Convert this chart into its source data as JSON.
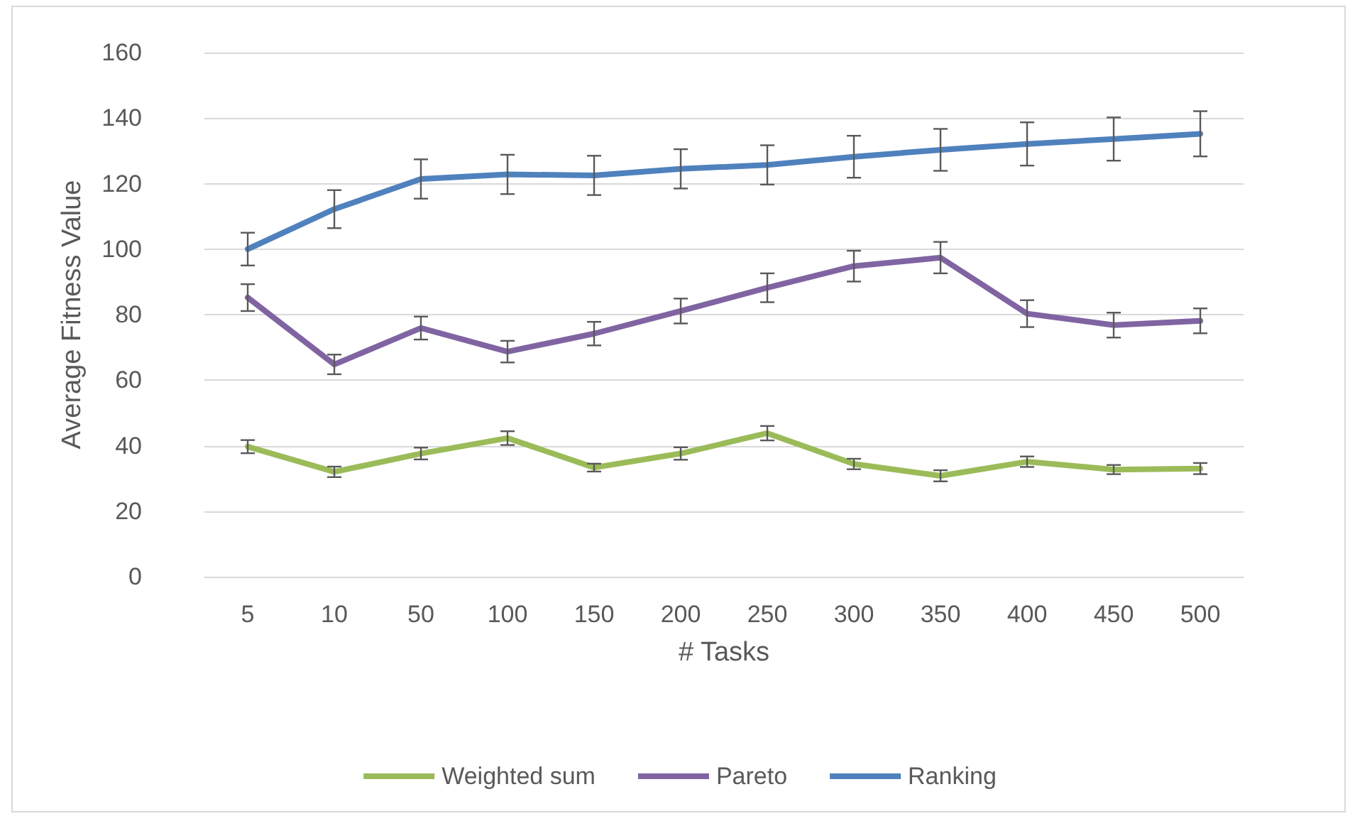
{
  "chart_data": {
    "type": "line",
    "xlabel": "# Tasks",
    "ylabel": "Average Fitness Value",
    "categories": [
      "5",
      "10",
      "50",
      "100",
      "150",
      "200",
      "250",
      "300",
      "350",
      "400",
      "450",
      "500"
    ],
    "series": [
      {
        "name": "Weighted sum",
        "color": "#9bbb59",
        "values": [
          39.7,
          32,
          37.6,
          42.3,
          33.3,
          37.6,
          43.8,
          34.4,
          30.8,
          35.1,
          32.7,
          33
        ],
        "errors": [
          2,
          1.6,
          1.8,
          2.1,
          1.2,
          1.9,
          2.2,
          1.6,
          1.7,
          1.6,
          1.4,
          1.7
        ]
      },
      {
        "name": "Pareto",
        "color": "#8064a2",
        "values": [
          85.2,
          64.8,
          75.9,
          68.7,
          74.2,
          81.1,
          88.2,
          94.8,
          97.4,
          80.3,
          76.8,
          78.1
        ],
        "errors": [
          4.1,
          3,
          3.5,
          3.3,
          3.6,
          3.8,
          4.4,
          4.7,
          4.8,
          4.1,
          3.8,
          3.8
        ]
      },
      {
        "name": "Ranking",
        "color": "#4f81bd",
        "values": [
          100,
          112.2,
          121.4,
          122.8,
          122.5,
          124.5,
          125.7,
          128.2,
          130.3,
          132.1,
          133.6,
          135.2
        ],
        "errors": [
          5,
          5.8,
          6,
          6,
          6,
          6,
          6,
          6.4,
          6.4,
          6.6,
          6.6,
          6.9
        ]
      }
    ],
    "ylim": [
      0,
      160
    ],
    "yticks": [
      0,
      20,
      40,
      60,
      80,
      100,
      120,
      140,
      160
    ],
    "grid": "y",
    "legend": "bottom",
    "marker": "none",
    "line_style": "solid"
  }
}
